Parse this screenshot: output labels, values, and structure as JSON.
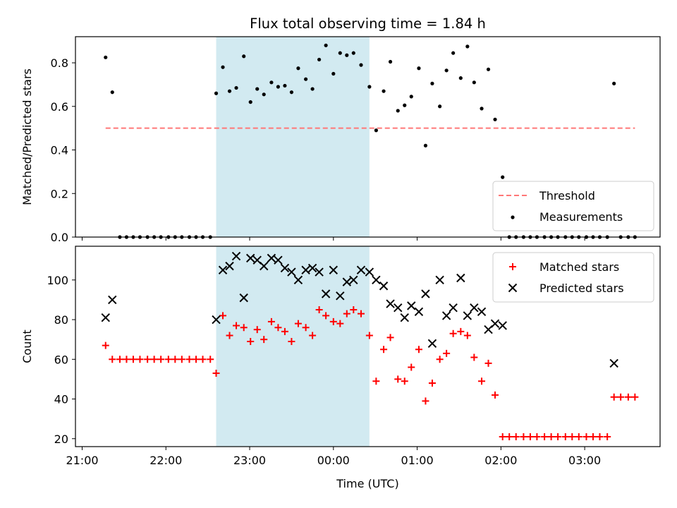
{
  "chart_data": [
    {
      "type": "scatter",
      "title": "Flux total observing time = 1.84 h",
      "xlabel": "",
      "ylabel": "Matched/Predicted stars",
      "ylim": [
        0,
        0.92
      ],
      "yticks": [
        0.0,
        0.2,
        0.4,
        0.6,
        0.8
      ],
      "ytick_labels": [
        "0.0",
        "0.2",
        "0.4",
        "0.6",
        "0.8"
      ],
      "xlim": [
        -0.08,
        6.9
      ],
      "grid": false,
      "legend_position": "bottom-right",
      "shaded_interval": {
        "x": [
          1.6,
          3.43
        ],
        "color": "#add8e6"
      },
      "threshold": {
        "name": "Threshold",
        "y": 0.5,
        "x": [
          0.28,
          6.6
        ],
        "color": "#ff7777",
        "style": "dashed"
      },
      "series": [
        {
          "name": "Measurements",
          "marker": "dot",
          "color": "#000000",
          "points": [
            [
              0.28,
              0.825
            ],
            [
              0.36,
              0.665
            ],
            [
              0.45,
              0.0
            ],
            [
              0.53,
              0.0
            ],
            [
              0.61,
              0.0
            ],
            [
              0.69,
              0.0
            ],
            [
              0.78,
              0.0
            ],
            [
              0.86,
              0.0
            ],
            [
              0.94,
              0.0
            ],
            [
              1.03,
              0.0
            ],
            [
              1.11,
              0.0
            ],
            [
              1.19,
              0.0
            ],
            [
              1.28,
              0.0
            ],
            [
              1.36,
              0.0
            ],
            [
              1.44,
              0.0
            ],
            [
              1.53,
              0.0
            ],
            [
              1.6,
              0.66
            ],
            [
              1.68,
              0.78
            ],
            [
              1.76,
              0.67
            ],
            [
              1.84,
              0.685
            ],
            [
              1.93,
              0.83
            ],
            [
              2.01,
              0.62
            ],
            [
              2.09,
              0.68
            ],
            [
              2.17,
              0.655
            ],
            [
              2.26,
              0.71
            ],
            [
              2.34,
              0.69
            ],
            [
              2.42,
              0.695
            ],
            [
              2.5,
              0.665
            ],
            [
              2.58,
              0.775
            ],
            [
              2.67,
              0.725
            ],
            [
              2.75,
              0.68
            ],
            [
              2.83,
              0.815
            ],
            [
              2.91,
              0.88
            ],
            [
              3.0,
              0.75
            ],
            [
              3.08,
              0.845
            ],
            [
              3.16,
              0.835
            ],
            [
              3.24,
              0.845
            ],
            [
              3.33,
              0.79
            ],
            [
              3.43,
              0.69
            ],
            [
              3.51,
              0.49
            ],
            [
              3.6,
              0.67
            ],
            [
              3.68,
              0.805
            ],
            [
              3.77,
              0.58
            ],
            [
              3.85,
              0.605
            ],
            [
              3.93,
              0.645
            ],
            [
              4.02,
              0.775
            ],
            [
              4.1,
              0.42
            ],
            [
              4.18,
              0.705
            ],
            [
              4.27,
              0.6
            ],
            [
              4.35,
              0.765
            ],
            [
              4.43,
              0.845
            ],
            [
              4.52,
              0.73
            ],
            [
              4.6,
              0.875
            ],
            [
              4.68,
              0.71
            ],
            [
              4.77,
              0.59
            ],
            [
              4.85,
              0.77
            ],
            [
              4.93,
              0.54
            ],
            [
              5.02,
              0.275
            ],
            [
              5.1,
              0.0
            ],
            [
              5.18,
              0.0
            ],
            [
              5.27,
              0.0
            ],
            [
              5.35,
              0.0
            ],
            [
              5.43,
              0.0
            ],
            [
              5.52,
              0.0
            ],
            [
              5.6,
              0.0
            ],
            [
              5.68,
              0.0
            ],
            [
              5.77,
              0.0
            ],
            [
              5.85,
              0.0
            ],
            [
              5.93,
              0.0
            ],
            [
              6.02,
              0.0
            ],
            [
              6.1,
              0.0
            ],
            [
              6.18,
              0.0
            ],
            [
              6.27,
              0.0
            ],
            [
              6.35,
              0.705
            ],
            [
              6.43,
              0.0
            ],
            [
              6.52,
              0.0
            ],
            [
              6.6,
              0.0
            ]
          ]
        }
      ]
    },
    {
      "type": "scatter",
      "title": "",
      "xlabel": "Time (UTC)",
      "ylabel": "Count",
      "ylim": [
        16,
        117
      ],
      "yticks": [
        20,
        40,
        60,
        80,
        100
      ],
      "ytick_labels": [
        "20",
        "40",
        "60",
        "80",
        "100"
      ],
      "xlim": [
        -0.08,
        6.9
      ],
      "xticks": [
        0,
        1,
        2,
        3,
        4,
        5,
        6
      ],
      "xtick_labels": [
        "21:00",
        "22:00",
        "23:00",
        "00:00",
        "01:00",
        "02:00",
        "03:00"
      ],
      "grid": false,
      "legend_position": "top-right",
      "shaded_interval": {
        "x": [
          1.6,
          3.43
        ],
        "color": "#add8e6"
      },
      "series": [
        {
          "name": "Matched stars",
          "marker": "plus",
          "color": "#ff0000",
          "points": [
            [
              0.28,
              67
            ],
            [
              0.36,
              60
            ],
            [
              0.45,
              60
            ],
            [
              0.53,
              60
            ],
            [
              0.61,
              60
            ],
            [
              0.69,
              60
            ],
            [
              0.78,
              60
            ],
            [
              0.86,
              60
            ],
            [
              0.94,
              60
            ],
            [
              1.03,
              60
            ],
            [
              1.11,
              60
            ],
            [
              1.19,
              60
            ],
            [
              1.28,
              60
            ],
            [
              1.36,
              60
            ],
            [
              1.44,
              60
            ],
            [
              1.53,
              60
            ],
            [
              1.6,
              53
            ],
            [
              1.68,
              82
            ],
            [
              1.76,
              72
            ],
            [
              1.84,
              77
            ],
            [
              1.93,
              76
            ],
            [
              2.01,
              69
            ],
            [
              2.09,
              75
            ],
            [
              2.17,
              70
            ],
            [
              2.26,
              79
            ],
            [
              2.34,
              76
            ],
            [
              2.42,
              74
            ],
            [
              2.5,
              69
            ],
            [
              2.58,
              78
            ],
            [
              2.67,
              76
            ],
            [
              2.75,
              72
            ],
            [
              2.83,
              85
            ],
            [
              2.91,
              82
            ],
            [
              3.0,
              79
            ],
            [
              3.08,
              78
            ],
            [
              3.16,
              83
            ],
            [
              3.24,
              85
            ],
            [
              3.33,
              83
            ],
            [
              3.43,
              72
            ],
            [
              3.51,
              49
            ],
            [
              3.6,
              65
            ],
            [
              3.68,
              71
            ],
            [
              3.77,
              50
            ],
            [
              3.85,
              49
            ],
            [
              3.93,
              56
            ],
            [
              4.02,
              65
            ],
            [
              4.1,
              39
            ],
            [
              4.18,
              48
            ],
            [
              4.27,
              60
            ],
            [
              4.35,
              63
            ],
            [
              4.43,
              73
            ],
            [
              4.52,
              74
            ],
            [
              4.6,
              72
            ],
            [
              4.68,
              61
            ],
            [
              4.77,
              49
            ],
            [
              4.85,
              58
            ],
            [
              4.93,
              42
            ],
            [
              5.02,
              21
            ],
            [
              5.1,
              21
            ],
            [
              5.18,
              21
            ],
            [
              5.27,
              21
            ],
            [
              5.35,
              21
            ],
            [
              5.43,
              21
            ],
            [
              5.52,
              21
            ],
            [
              5.6,
              21
            ],
            [
              5.68,
              21
            ],
            [
              5.77,
              21
            ],
            [
              5.85,
              21
            ],
            [
              5.93,
              21
            ],
            [
              6.02,
              21
            ],
            [
              6.1,
              21
            ],
            [
              6.18,
              21
            ],
            [
              6.27,
              21
            ],
            [
              6.35,
              41
            ],
            [
              6.43,
              41
            ],
            [
              6.52,
              41
            ],
            [
              6.6,
              41
            ]
          ]
        },
        {
          "name": "Predicted stars",
          "marker": "x",
          "color": "#000000",
          "points": [
            [
              0.28,
              81
            ],
            [
              0.36,
              90
            ],
            [
              1.6,
              80
            ],
            [
              1.68,
              105
            ],
            [
              1.76,
              107
            ],
            [
              1.84,
              112
            ],
            [
              1.93,
              91
            ],
            [
              2.01,
              111
            ],
            [
              2.09,
              110
            ],
            [
              2.17,
              107
            ],
            [
              2.26,
              111
            ],
            [
              2.34,
              110
            ],
            [
              2.42,
              106
            ],
            [
              2.5,
              104
            ],
            [
              2.58,
              100
            ],
            [
              2.67,
              105
            ],
            [
              2.75,
              106
            ],
            [
              2.83,
              104
            ],
            [
              2.91,
              93
            ],
            [
              3.0,
              105
            ],
            [
              3.08,
              92
            ],
            [
              3.16,
              99
            ],
            [
              3.24,
              100
            ],
            [
              3.33,
              105
            ],
            [
              3.43,
              104
            ],
            [
              3.51,
              100
            ],
            [
              3.6,
              97
            ],
            [
              3.68,
              88
            ],
            [
              3.77,
              86
            ],
            [
              3.85,
              81
            ],
            [
              3.93,
              87
            ],
            [
              4.02,
              84
            ],
            [
              4.1,
              93
            ],
            [
              4.18,
              68
            ],
            [
              4.27,
              100
            ],
            [
              4.35,
              82
            ],
            [
              4.43,
              86
            ],
            [
              4.52,
              101
            ],
            [
              4.6,
              82
            ],
            [
              4.68,
              86
            ],
            [
              4.77,
              84
            ],
            [
              4.85,
              75
            ],
            [
              4.93,
              78
            ],
            [
              5.02,
              77
            ],
            [
              6.35,
              58
            ]
          ]
        }
      ]
    }
  ]
}
